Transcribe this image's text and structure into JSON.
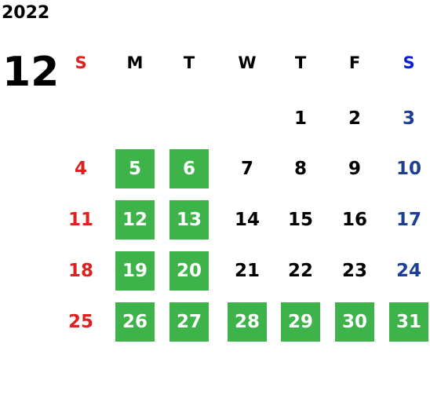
{
  "year": "2022",
  "month": "12",
  "weekdays": [
    "S",
    "M",
    "T",
    "W",
    "T",
    "F",
    "S"
  ],
  "colors": {
    "sunday": "#e0201e",
    "saturday_header": "#0a1fd8",
    "saturday": "#1c3e94",
    "weekday": "#000000",
    "highlight": "#3db34a",
    "highlight_text": "#ffffff"
  },
  "weeks": [
    [
      null,
      null,
      null,
      null,
      {
        "day": 1,
        "highlighted": false
      },
      {
        "day": 2,
        "highlighted": false
      },
      {
        "day": 3,
        "highlighted": false
      }
    ],
    [
      {
        "day": 4,
        "highlighted": false
      },
      {
        "day": 5,
        "highlighted": true
      },
      {
        "day": 6,
        "highlighted": true
      },
      {
        "day": 7,
        "highlighted": false
      },
      {
        "day": 8,
        "highlighted": false
      },
      {
        "day": 9,
        "highlighted": false
      },
      {
        "day": 10,
        "highlighted": false
      }
    ],
    [
      {
        "day": 11,
        "highlighted": false
      },
      {
        "day": 12,
        "highlighted": true
      },
      {
        "day": 13,
        "highlighted": true
      },
      {
        "day": 14,
        "highlighted": false
      },
      {
        "day": 15,
        "highlighted": false
      },
      {
        "day": 16,
        "highlighted": false
      },
      {
        "day": 17,
        "highlighted": false
      }
    ],
    [
      {
        "day": 18,
        "highlighted": false
      },
      {
        "day": 19,
        "highlighted": true
      },
      {
        "day": 20,
        "highlighted": true
      },
      {
        "day": 21,
        "highlighted": false
      },
      {
        "day": 22,
        "highlighted": false
      },
      {
        "day": 23,
        "highlighted": false
      },
      {
        "day": 24,
        "highlighted": false
      }
    ],
    [
      {
        "day": 25,
        "highlighted": false
      },
      {
        "day": 26,
        "highlighted": true
      },
      {
        "day": 27,
        "highlighted": true
      },
      {
        "day": 28,
        "highlighted": true
      },
      {
        "day": 29,
        "highlighted": true
      },
      {
        "day": 30,
        "highlighted": true
      },
      {
        "day": 31,
        "highlighted": true
      }
    ]
  ]
}
